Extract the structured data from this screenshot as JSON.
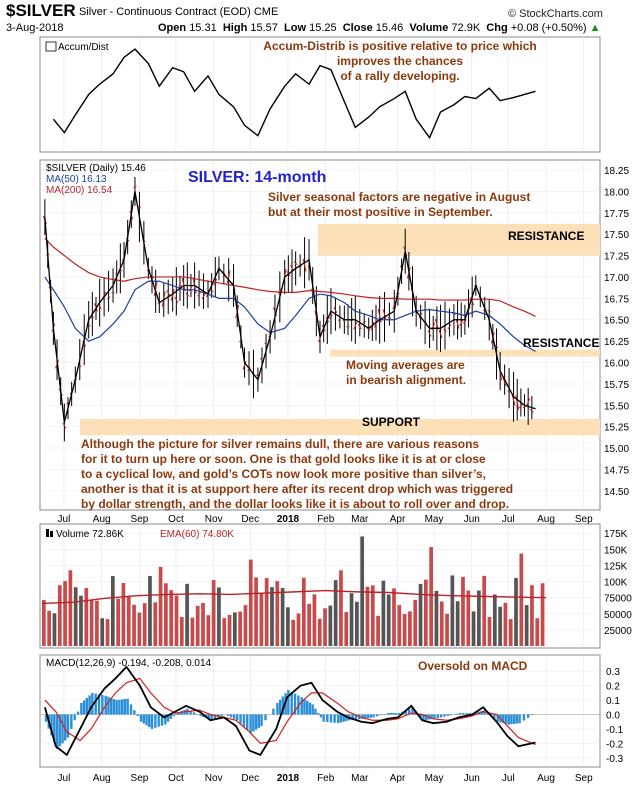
{
  "header": {
    "symbol": "$SILVER",
    "subtitle": "Silver - Continuous Contract (EOD)",
    "exchange": "CME",
    "date": "3-Aug-2018",
    "open_label": "Open",
    "open": "15.31",
    "high_label": "High",
    "high": "15.57",
    "low_label": "Low",
    "low": "15.25",
    "close_label": "Close",
    "close": "15.46",
    "volume_label": "Volume",
    "volume": "72.9K",
    "chg_label": "Chg",
    "chg": "+0.08 (+0.50%)",
    "chg_arrow": "▲",
    "watermark": "© StockCharts.com"
  },
  "annotations": {
    "accum_note": [
      "Accum-Distrib is positive relative to price which",
      "improves the chances",
      "of a rally developing."
    ],
    "title_blue": "SILVER: 14-month",
    "seasonal_note": [
      "Silver seasonal factors are negative in August",
      "but  at  their  most  positive  in  September."
    ],
    "resistance_upper": "RESISTANCE",
    "resistance_lower": "RESISTANCE",
    "ma_note": [
      "Moving averages are",
      "in bearish alignment."
    ],
    "support": "SUPPORT",
    "commentary": [
      "Although the picture for silver remains dull, there are various reasons",
      "for it to turn up here or soon. One is that gold looks like it is at or close",
      "to a cyclical low, and gold’s COTs now look more positive than silver’s,",
      "another is that it is at support here after its recent drop which was triggered",
      "by dollar strength, and the dollar looks like it is about to roll over and drop."
    ],
    "macd_note": "Oversold on MACD"
  },
  "colors": {
    "accent_brown": "#8b3a0f",
    "title_blue": "#2323c8",
    "band": "#fbe0b8",
    "ma50": "#1f3f9f",
    "ma200": "#b8242a",
    "volume_bar": "#c84a4a",
    "volume_ema": "#b8242a",
    "macd_hist": "#2a8fd6",
    "macd_signal": "#d02020",
    "macd_line": "#000000"
  },
  "chart_data": [
    {
      "type": "line",
      "panel": "accum_dist",
      "legend": [
        "Accum/Dist"
      ],
      "y_ticks": [],
      "x": [
        "2017-07-03",
        "2017-07-12",
        "2017-07-21",
        "2017-08-01",
        "2017-08-10",
        "2017-08-21",
        "2017-08-30",
        "2017-09-08",
        "2017-09-19",
        "2017-09-28",
        "2017-10-09",
        "2017-10-18",
        "2017-10-27",
        "2017-11-07",
        "2017-11-16",
        "2017-11-28",
        "2017-12-07",
        "2017-12-18",
        "2017-12-28",
        "2018-01-09",
        "2018-01-18",
        "2018-01-29",
        "2018-02-07",
        "2018-02-16",
        "2018-02-27",
        "2018-03-08",
        "2018-03-19",
        "2018-03-28",
        "2018-04-09",
        "2018-04-18",
        "2018-04-27",
        "2018-05-08",
        "2018-05-17",
        "2018-05-28",
        "2018-06-06",
        "2018-06-15",
        "2018-06-26",
        "2018-07-05",
        "2018-07-16",
        "2018-07-25",
        "2018-08-03"
      ],
      "series": [
        {
          "values": [
            0.28,
            0.15,
            0.32,
            0.52,
            0.62,
            0.72,
            0.88,
            0.96,
            0.82,
            0.6,
            0.78,
            0.74,
            0.55,
            0.7,
            0.52,
            0.4,
            0.22,
            0.12,
            0.38,
            0.6,
            0.72,
            0.62,
            0.8,
            0.76,
            0.45,
            0.2,
            0.3,
            0.4,
            0.48,
            0.55,
            0.28,
            0.1,
            0.35,
            0.42,
            0.5,
            0.48,
            0.58,
            0.46,
            0.49,
            0.52,
            0.55
          ]
        }
      ]
    },
    {
      "type": "line",
      "panel": "price",
      "legend": [
        "$SILVER (Daily) 15.46",
        "MA(50) 16.13",
        "MA(200) 16.54"
      ],
      "y_ticks": [
        "18.25",
        "18.00",
        "17.75",
        "17.50",
        "17.25",
        "17.00",
        "16.75",
        "16.50",
        "16.25",
        "16.00",
        "15.75",
        "15.50",
        "15.25",
        "15.00",
        "14.75",
        "14.50"
      ],
      "ylim": [
        14.3,
        18.25
      ],
      "bands": [
        {
          "name": "resistance-upper",
          "from": 17.25,
          "to": 17.62
        },
        {
          "name": "resistance-lower",
          "from": 16.07,
          "to": 16.15
        },
        {
          "name": "support",
          "from": 15.15,
          "to": 15.34
        }
      ],
      "x": [
        "2017-06-26",
        "2017-07-03",
        "2017-07-12",
        "2017-07-21",
        "2017-08-01",
        "2017-08-10",
        "2017-08-21",
        "2017-08-30",
        "2017-09-08",
        "2017-09-19",
        "2017-09-28",
        "2017-10-09",
        "2017-10-18",
        "2017-10-27",
        "2017-11-07",
        "2017-11-16",
        "2017-11-28",
        "2017-12-07",
        "2017-12-18",
        "2017-12-28",
        "2018-01-09",
        "2018-01-18",
        "2018-01-29",
        "2018-02-07",
        "2018-02-16",
        "2018-02-27",
        "2018-03-08",
        "2018-03-19",
        "2018-03-28",
        "2018-04-09",
        "2018-04-18",
        "2018-04-27",
        "2018-05-08",
        "2018-05-17",
        "2018-05-28",
        "2018-06-06",
        "2018-06-15",
        "2018-06-26",
        "2018-07-05",
        "2018-07-16",
        "2018-07-25",
        "2018-08-03"
      ],
      "series": [
        {
          "name": "$SILVER (Daily)",
          "values": [
            17.7,
            16.4,
            15.3,
            15.8,
            16.5,
            16.7,
            16.9,
            17.2,
            18.0,
            17.1,
            16.7,
            16.8,
            16.9,
            16.9,
            16.8,
            17.1,
            16.9,
            16.0,
            15.8,
            16.3,
            17.0,
            17.1,
            17.2,
            16.3,
            16.6,
            16.5,
            16.5,
            16.4,
            16.5,
            16.6,
            17.3,
            16.6,
            16.4,
            16.4,
            16.5,
            16.5,
            16.9,
            16.5,
            15.9,
            15.6,
            15.5,
            15.46
          ]
        },
        {
          "name": "MA(50)",
          "values": [
            17.0,
            16.85,
            16.65,
            16.4,
            16.25,
            16.3,
            16.45,
            16.6,
            16.85,
            16.95,
            16.95,
            16.9,
            16.85,
            16.85,
            16.8,
            16.75,
            16.75,
            16.65,
            16.45,
            16.35,
            16.4,
            16.55,
            16.75,
            16.8,
            16.78,
            16.7,
            16.6,
            16.55,
            16.5,
            16.5,
            16.55,
            16.6,
            16.62,
            16.6,
            16.58,
            16.55,
            16.6,
            16.55,
            16.45,
            16.3,
            16.2,
            16.13
          ]
        },
        {
          "name": "MA(200)",
          "values": [
            17.45,
            17.35,
            17.25,
            17.15,
            17.05,
            17.0,
            16.97,
            16.95,
            16.98,
            17.0,
            17.0,
            17.0,
            17.0,
            16.98,
            16.95,
            16.93,
            16.9,
            16.88,
            16.85,
            16.83,
            16.82,
            16.82,
            16.84,
            16.83,
            16.82,
            16.8,
            16.78,
            16.76,
            16.75,
            16.75,
            16.74,
            16.74,
            16.74,
            16.73,
            16.73,
            16.73,
            16.74,
            16.74,
            16.72,
            16.65,
            16.6,
            16.54
          ]
        }
      ]
    },
    {
      "type": "bar",
      "panel": "volume",
      "legend": [
        "Volume 72.86K",
        "EMA(60) 74.80K"
      ],
      "y_ticks": [
        "175K",
        "150K",
        "125K",
        "100K",
        "75000",
        "50000",
        "25000"
      ],
      "ylim": [
        0,
        180000
      ],
      "x_labels": [
        "Jul",
        "Aug",
        "Sep",
        "Oct",
        "Nov",
        "Dec",
        "2018",
        "Feb",
        "Mar",
        "Apr",
        "May",
        "Jun",
        "Jul",
        "Aug",
        "Sep"
      ],
      "bar_count": 95,
      "ema_values": [
        66000,
        68000,
        74000,
        78000,
        80000,
        81000,
        80000,
        82000,
        84000,
        86000,
        84000,
        83000,
        80000,
        78000,
        77000,
        76000,
        75000
      ]
    },
    {
      "type": "line",
      "panel": "macd",
      "legend": [
        "MACD(12,26,9) -0.194, -0.208, 0.014"
      ],
      "y_ticks": [
        "0.3",
        "0.2",
        "0.1",
        "0.0",
        "-0.1",
        "-0.2",
        "-0.3"
      ],
      "ylim": [
        -0.35,
        0.35
      ],
      "x": [
        "2017-06-26",
        "2017-07-05",
        "2017-07-14",
        "2017-07-25",
        "2017-08-03",
        "2017-08-14",
        "2017-08-23",
        "2017-09-01",
        "2017-09-12",
        "2017-09-21",
        "2017-10-02",
        "2017-10-11",
        "2017-10-20",
        "2017-10-31",
        "2017-11-09",
        "2017-11-20",
        "2017-11-30",
        "2017-12-11",
        "2017-12-20",
        "2018-01-02",
        "2018-01-11",
        "2018-01-22",
        "2018-01-31",
        "2018-02-09",
        "2018-02-21",
        "2018-03-02",
        "2018-03-13",
        "2018-03-22",
        "2018-04-03",
        "2018-04-12",
        "2018-04-23",
        "2018-05-02",
        "2018-05-11",
        "2018-05-22",
        "2018-06-01",
        "2018-06-12",
        "2018-06-21",
        "2018-07-02",
        "2018-07-11",
        "2018-07-20",
        "2018-08-03"
      ],
      "series": [
        {
          "name": "MACD",
          "values": [
            0.05,
            -0.22,
            -0.28,
            -0.1,
            0.05,
            0.18,
            0.25,
            0.33,
            0.2,
            0.05,
            -0.02,
            0.02,
            0.06,
            0.02,
            -0.04,
            -0.02,
            -0.08,
            -0.25,
            -0.28,
            -0.1,
            0.12,
            0.2,
            0.22,
            0.1,
            0.02,
            -0.02,
            -0.05,
            -0.06,
            -0.03,
            -0.02,
            0.06,
            -0.04,
            -0.06,
            -0.05,
            -0.02,
            0.0,
            0.05,
            -0.05,
            -0.15,
            -0.22,
            -0.194
          ]
        },
        {
          "name": "Signal",
          "values": [
            0.1,
            0.02,
            -0.12,
            -0.18,
            -0.1,
            0.05,
            0.15,
            0.22,
            0.25,
            0.15,
            0.05,
            0.01,
            0.02,
            0.03,
            0.0,
            -0.02,
            -0.04,
            -0.12,
            -0.2,
            -0.18,
            -0.05,
            0.08,
            0.15,
            0.15,
            0.08,
            0.02,
            -0.02,
            -0.04,
            -0.04,
            -0.03,
            0.01,
            0.0,
            -0.03,
            -0.04,
            -0.03,
            -0.01,
            0.02,
            0.0,
            -0.08,
            -0.16,
            -0.208
          ]
        }
      ]
    }
  ]
}
